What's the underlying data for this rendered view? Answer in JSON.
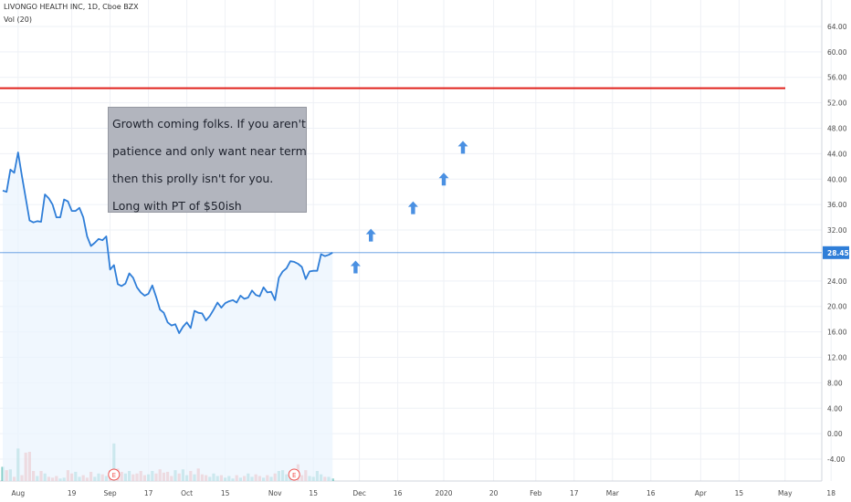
{
  "header": {
    "title": "LIVONGO HEALTH INC, 1D, Cboe BZX",
    "volume_label": "Vol (20)"
  },
  "annotation": {
    "lines": [
      "Growth coming folks. If you aren't",
      "patience and only want near term",
      "then this prolly isn't for you.",
      "Long with PT of $50ish"
    ]
  },
  "chart_data": {
    "type": "line",
    "ylim": [
      -6,
      66
    ],
    "grid": true,
    "y_ticks": [
      {
        "v": 64,
        "label": "64.00"
      },
      {
        "v": 60,
        "label": "60.00"
      },
      {
        "v": 56,
        "label": "56.00"
      },
      {
        "v": 52,
        "label": "52.00"
      },
      {
        "v": 48,
        "label": "48.00"
      },
      {
        "v": 44,
        "label": "44.00"
      },
      {
        "v": 40,
        "label": "40.00"
      },
      {
        "v": 36,
        "label": "36.00"
      },
      {
        "v": 32,
        "label": "32.00"
      },
      {
        "v": 24,
        "label": "24.00"
      },
      {
        "v": 20,
        "label": "20.00"
      },
      {
        "v": 16,
        "label": "16.00"
      },
      {
        "v": 12,
        "label": "12.00"
      },
      {
        "v": 8,
        "label": "8.00"
      },
      {
        "v": 4,
        "label": "4.00"
      },
      {
        "v": 0,
        "label": "0.00"
      },
      {
        "v": -4,
        "label": "-4.00"
      }
    ],
    "x_ticks": [
      {
        "i": 4,
        "label": "Aug"
      },
      {
        "i": 18,
        "label": "19"
      },
      {
        "i": 28,
        "label": "Sep"
      },
      {
        "i": 38,
        "label": "17"
      },
      {
        "i": 48,
        "label": "Oct"
      },
      {
        "i": 58,
        "label": "15"
      },
      {
        "i": 71,
        "label": "Nov"
      },
      {
        "i": 81,
        "label": "15"
      },
      {
        "i": 93,
        "label": "Dec"
      },
      {
        "i": 103,
        "label": "16"
      },
      {
        "i": 115,
        "label": "2020"
      },
      {
        "i": 128,
        "label": "20"
      },
      {
        "i": 139,
        "label": "Feb"
      },
      {
        "i": 149,
        "label": "17"
      },
      {
        "i": 159,
        "label": "Mar"
      },
      {
        "i": 169,
        "label": "16"
      },
      {
        "i": 182,
        "label": "Apr"
      },
      {
        "i": 192,
        "label": "15"
      },
      {
        "i": 204,
        "label": "May"
      },
      {
        "i": 216,
        "label": "18"
      }
    ],
    "price_series": {
      "name": "LIVONGO HEALTH INC",
      "values": [
        38.2,
        38.0,
        41.5,
        41.0,
        44.2,
        40.5,
        37.0,
        33.5,
        33.2,
        33.4,
        33.3,
        37.6,
        37.0,
        36.0,
        34.0,
        34.0,
        36.8,
        36.5,
        35.0,
        35.0,
        35.5,
        34.0,
        31.0,
        29.5,
        30.0,
        30.6,
        30.4,
        31.0,
        25.8,
        26.5,
        23.5,
        23.2,
        23.6,
        25.2,
        24.5,
        23.0,
        22.2,
        21.7,
        22.0,
        23.3,
        21.5,
        19.5,
        19.0,
        17.5,
        17.0,
        17.2,
        15.8,
        16.8,
        17.5,
        16.6,
        19.3,
        19.0,
        18.9,
        17.8,
        18.5,
        19.5,
        20.6,
        19.8,
        20.5,
        20.8,
        21.0,
        20.6,
        21.7,
        21.2,
        21.4,
        22.5,
        21.8,
        21.6,
        23.0,
        22.2,
        22.3,
        21.0,
        24.5,
        25.5,
        26.0,
        27.1,
        27.0,
        26.7,
        26.2,
        24.3,
        25.5,
        25.6,
        25.6,
        28.2,
        27.9,
        28.1,
        28.45
      ],
      "last_price": 28.45,
      "last_price_label": "28.45",
      "color": "#2f7ed8",
      "marker_color": "#4a90e2"
    },
    "volume_series": {
      "name": "Vol (20)",
      "max_shown": 14.0,
      "values": [
        1.7,
        1.3,
        1.4,
        0.5,
        3.9,
        0.7,
        3.4,
        3.5,
        1.2,
        0.6,
        1.2,
        0.9,
        0.5,
        0.4,
        0.6,
        0.3,
        0.4,
        1.3,
        0.9,
        1.1,
        0.5,
        0.7,
        0.4,
        1.1,
        0.5,
        0.9,
        0.8,
        0.6,
        1.3,
        4.5,
        1.5,
        1.1,
        0.9,
        1.2,
        0.8,
        0.9,
        1.2,
        0.7,
        0.8,
        1.2,
        0.9,
        1.4,
        1.0,
        1.1,
        0.6,
        1.3,
        0.9,
        1.4,
        0.7,
        1.2,
        0.8,
        1.5,
        0.8,
        0.7,
        0.5,
        0.9,
        0.6,
        0.7,
        0.4,
        0.6,
        0.3,
        0.7,
        0.4,
        0.6,
        0.9,
        0.5,
        0.8,
        0.6,
        0.4,
        0.7,
        0.5,
        0.9,
        1.2,
        1.3,
        0.8,
        0.8,
        1.0,
        2.0,
        0.7,
        1.3,
        0.6,
        0.5,
        1.2,
        0.8,
        0.5,
        0.5,
        0.3
      ],
      "up_color": "#26a69a",
      "down_color": "#ef5350"
    },
    "earnings_markers": [
      {
        "i": 29,
        "label": "E"
      },
      {
        "i": 76,
        "label": "E"
      }
    ],
    "target_line": {
      "y": 54.3,
      "color": "#e0201b"
    },
    "forecast_arrows": [
      {
        "i": 92,
        "y": 26.2
      },
      {
        "i": 96,
        "y": 31.2
      },
      {
        "i": 107,
        "y": 35.5
      },
      {
        "i": 115,
        "y": 40.0
      },
      {
        "i": 120,
        "y": 45.0
      }
    ],
    "colors": {
      "grid": "#eef1f6",
      "axis_text": "#4a4a4a",
      "price_label_bg": "#2f7ed8",
      "fill": "#e9f3fd"
    }
  }
}
